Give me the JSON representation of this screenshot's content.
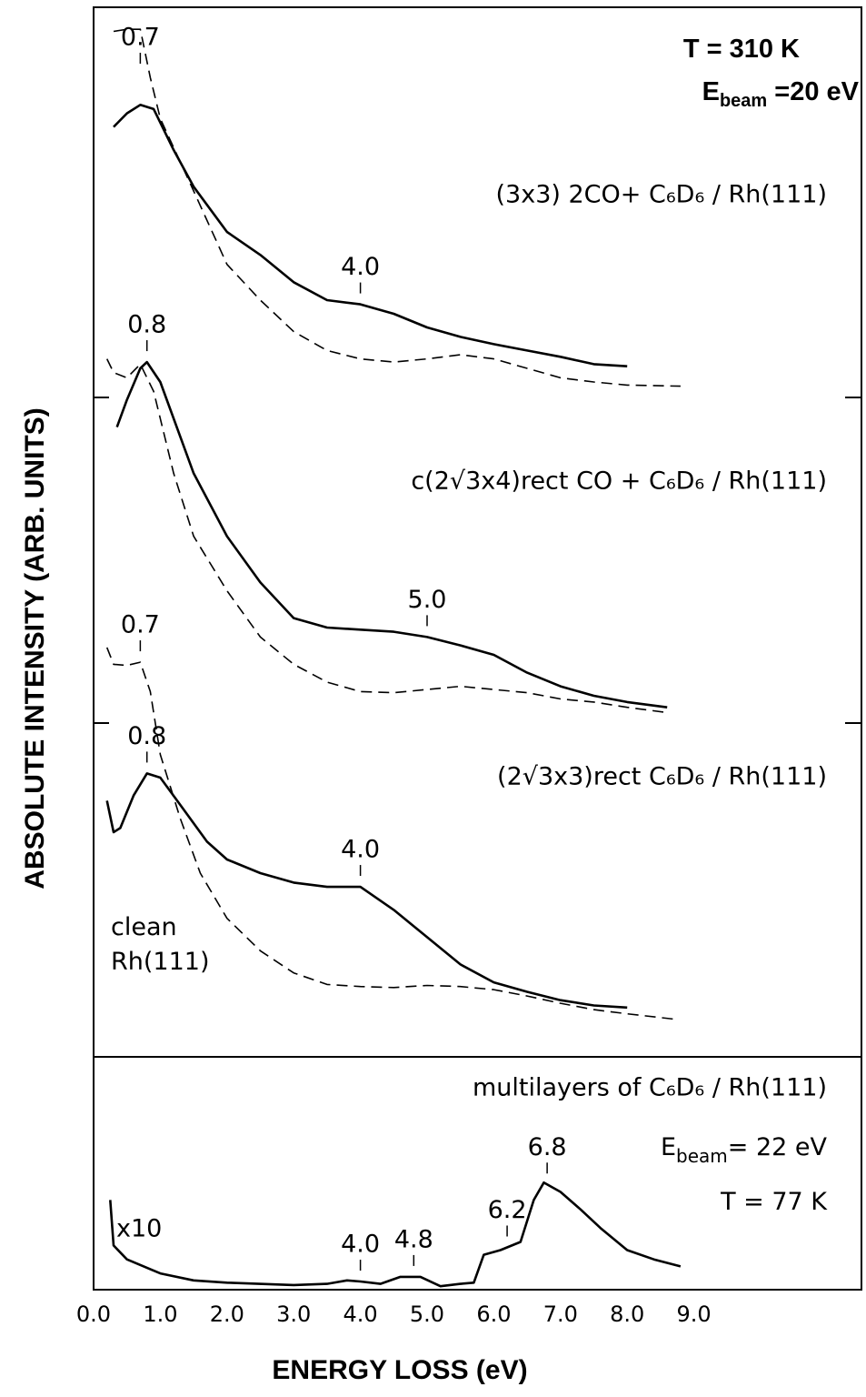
{
  "chart_data": [
    {
      "type": "line",
      "ylabel": "ABSOLUTE INTENSITY (ARB. UNITS)",
      "xlim": [
        0,
        11.5
      ],
      "ylim": [
        0,
        100
      ],
      "conditions": [
        {
          "main": "T =  310 K"
        },
        {
          "main": "E",
          "sub": "beam",
          "tail": " =20 eV"
        }
      ],
      "series": [
        {
          "name": "(3x3) 2CO+ C₆D₆ / Rh(111)",
          "style": "solid",
          "color": "#000000",
          "x": [
            0.3,
            0.5,
            0.7,
            0.9,
            1.2,
            1.5,
            2.0,
            2.5,
            3.0,
            3.5,
            4.0,
            4.5,
            5.0,
            5.5,
            6.0,
            6.5,
            7.0,
            7.5,
            8.0
          ],
          "values": [
            88.6,
            89.9,
            90.7,
            90.3,
            86.4,
            82.9,
            78.6,
            76.4,
            73.8,
            72.1,
            71.7,
            70.8,
            69.5,
            68.6,
            67.9,
            67.3,
            66.7,
            66.0,
            65.8
          ],
          "peaks": [
            {
              "value": 4,
              "label": "4.0"
            }
          ]
        },
        {
          "style": "dashed",
          "color": "#000000",
          "x": [
            0.3,
            0.5,
            0.7,
            0.85,
            1.0,
            1.5,
            2.0,
            2.5,
            3.0,
            3.5,
            4.0,
            4.5,
            5.0,
            5.5,
            6.0,
            6.5,
            7.0,
            7.5,
            8.0,
            8.8
          ],
          "values": [
            97.7,
            97.9,
            97.9,
            93.3,
            89.4,
            82.5,
            75.5,
            72.1,
            69.1,
            67.3,
            66.5,
            66.2,
            66.5,
            66.9,
            66.5,
            65.6,
            64.7,
            64.3,
            64.0,
            63.9
          ],
          "peaks": [
            {
              "value": 0.7,
              "label": "0.7"
            }
          ]
        },
        {
          "name": "c(2√3x4)rect CO + C₆D₆ / Rh(111)",
          "style": "solid",
          "color": "#000000",
          "x": [
            0.35,
            0.5,
            0.7,
            0.8,
            1.0,
            1.5,
            2.0,
            2.5,
            3.0,
            3.5,
            4.0,
            4.5,
            5.0,
            5.5,
            6.0,
            6.5,
            7.0,
            7.5,
            8.0,
            8.6
          ],
          "values": [
            60.0,
            62.6,
            65.6,
            66.2,
            64.3,
            55.6,
            49.6,
            45.2,
            41.8,
            40.9,
            40.7,
            40.5,
            40.0,
            39.2,
            38.3,
            36.6,
            35.3,
            34.4,
            33.8,
            33.3
          ],
          "peaks": [
            {
              "value": 0.8,
              "label": "0.8"
            },
            {
              "value": 5,
              "label": "5.0"
            }
          ]
        },
        {
          "style": "dashed",
          "color": "#000000",
          "x": [
            0.2,
            0.3,
            0.5,
            0.7,
            0.9,
            1.2,
            1.5,
            2.0,
            2.5,
            3.0,
            3.5,
            4.0,
            4.5,
            5.0,
            5.5,
            6.0,
            6.5,
            7.0,
            7.5,
            8.0,
            8.6
          ],
          "values": [
            66.5,
            65.2,
            64.7,
            66.0,
            63.4,
            55.6,
            49.6,
            44.4,
            40.0,
            37.4,
            35.7,
            34.8,
            34.7,
            35.0,
            35.3,
            35.0,
            34.7,
            34.1,
            33.8,
            33.3,
            32.8
          ]
        },
        {
          "name": "(2√3x3)rect C₆D₆ / Rh(111)",
          "style": "solid",
          "color": "#000000",
          "x": [
            0.2,
            0.3,
            0.4,
            0.6,
            0.8,
            1.0,
            1.3,
            1.7,
            2.0,
            2.5,
            3.0,
            3.5,
            4.0,
            4.5,
            5.0,
            5.5,
            6.0,
            6.5,
            7.0,
            7.5,
            8.0
          ],
          "values": [
            24.4,
            21.4,
            21.8,
            24.9,
            27.0,
            26.6,
            24.0,
            20.5,
            18.8,
            17.5,
            16.6,
            16.2,
            16.2,
            14.0,
            11.4,
            8.8,
            7.1,
            6.2,
            5.4,
            4.9,
            4.7
          ],
          "peaks": [
            {
              "value": 0.8,
              "label": "0.8"
            },
            {
              "value": 4,
              "label": "4.0"
            }
          ]
        },
        {
          "name": "clean Rh(111)",
          "style": "dashed",
          "color": "#000000",
          "x": [
            0.2,
            0.3,
            0.5,
            0.7,
            0.85,
            1.0,
            1.3,
            1.6,
            2.0,
            2.5,
            3.0,
            3.5,
            4.0,
            4.5,
            5.0,
            5.5,
            6.0,
            6.5,
            7.0,
            7.5,
            8.0,
            8.7
          ],
          "values": [
            39.0,
            37.4,
            37.3,
            37.6,
            34.8,
            28.8,
            22.7,
            17.5,
            13.2,
            10.1,
            8.0,
            6.9,
            6.7,
            6.6,
            6.8,
            6.7,
            6.4,
            5.8,
            5.1,
            4.5,
            4.1,
            3.6
          ],
          "peaks": [
            {
              "value": 0.7,
              "label": "0.7"
            }
          ]
        }
      ]
    },
    {
      "type": "line",
      "xlabel": "ENERGY LOSS (eV)",
      "xlim": [
        0,
        11.5
      ],
      "ylim": [
        0,
        20
      ],
      "xticks": [
        {
          "value": 0,
          "label": "0.0"
        },
        {
          "value": 1,
          "label": "1.0"
        },
        {
          "value": 2,
          "label": "2.0"
        },
        {
          "value": 3,
          "label": "3.0"
        },
        {
          "value": 4,
          "label": "4.0"
        },
        {
          "value": 5,
          "label": "5.0"
        },
        {
          "value": 6,
          "label": "6.0"
        },
        {
          "value": 7,
          "label": "7.0"
        },
        {
          "value": 8,
          "label": "8.0"
        },
        {
          "value": 9,
          "label": "9.0"
        }
      ],
      "conditions": [
        {
          "main": "E",
          "sub": "beam",
          "tail": "= 22 eV"
        },
        {
          "main": "T = 77  K"
        }
      ],
      "annotations": [
        "x10"
      ],
      "series": [
        {
          "name": "multilayers of  C₆D₆ / Rh(111)",
          "style": "solid",
          "color": "#000000",
          "x": [
            0.25,
            0.3,
            0.5,
            1.0,
            1.5,
            2.0,
            3.0,
            3.5,
            3.8,
            4.0,
            4.3,
            4.6,
            4.9,
            5.2,
            5.5,
            5.7,
            5.85,
            6.1,
            6.4,
            6.6,
            6.75,
            7.0,
            7.3,
            7.6,
            8.0,
            8.4,
            8.8
          ],
          "values": [
            7.7,
            3.8,
            2.6,
            1.4,
            0.8,
            0.6,
            0.4,
            0.5,
            0.8,
            0.7,
            0.5,
            1.1,
            1.1,
            0.3,
            0.5,
            0.6,
            3.0,
            3.4,
            4.1,
            7.7,
            9.2,
            8.4,
            6.9,
            5.3,
            3.4,
            2.6,
            2.0
          ],
          "peaks": [
            {
              "value": 4,
              "label": "4.0"
            },
            {
              "value": 4.8,
              "label": "4.8"
            },
            {
              "value": 6.2,
              "label": "6.2"
            },
            {
              "value": 6.8,
              "label": "6.8"
            }
          ]
        }
      ]
    }
  ]
}
